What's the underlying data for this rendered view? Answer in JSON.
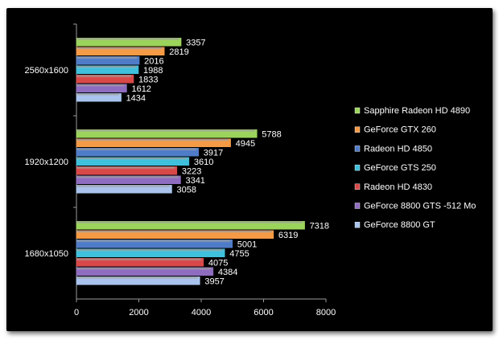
{
  "chart_data": {
    "type": "bar",
    "orientation": "horizontal",
    "categories": [
      "1680x1050",
      "1920x1200",
      "2560x1600"
    ],
    "series": [
      {
        "name": "Sapphire Radeon HD 4890",
        "color": "#9bd45a",
        "values": [
          7318,
          5788,
          3357
        ]
      },
      {
        "name": "GeForce GTX 260",
        "color": "#f59a45",
        "values": [
          6319,
          4945,
          2819
        ]
      },
      {
        "name": "Radeon HD 4850",
        "color": "#4f7cc8",
        "values": [
          5001,
          3917,
          2016
        ]
      },
      {
        "name": "GeForce GTS 250",
        "color": "#3fc0dc",
        "values": [
          4755,
          3610,
          1988
        ]
      },
      {
        "name": "Radeon HD 4830",
        "color": "#d94848",
        "values": [
          4075,
          3223,
          1833
        ]
      },
      {
        "name": "GeForce 8800 GTS -512 Mo",
        "color": "#8e6cc0",
        "values": [
          4384,
          3341,
          1612
        ]
      },
      {
        "name": "GeForce 8800 GT",
        "color": "#a9c3ee",
        "values": [
          3957,
          3058,
          1434
        ]
      }
    ],
    "xlim": [
      0,
      8000
    ],
    "xticks": [
      "0",
      "2000",
      "4000",
      "6000",
      "8000"
    ],
    "grid": false,
    "legend_position": "right"
  }
}
